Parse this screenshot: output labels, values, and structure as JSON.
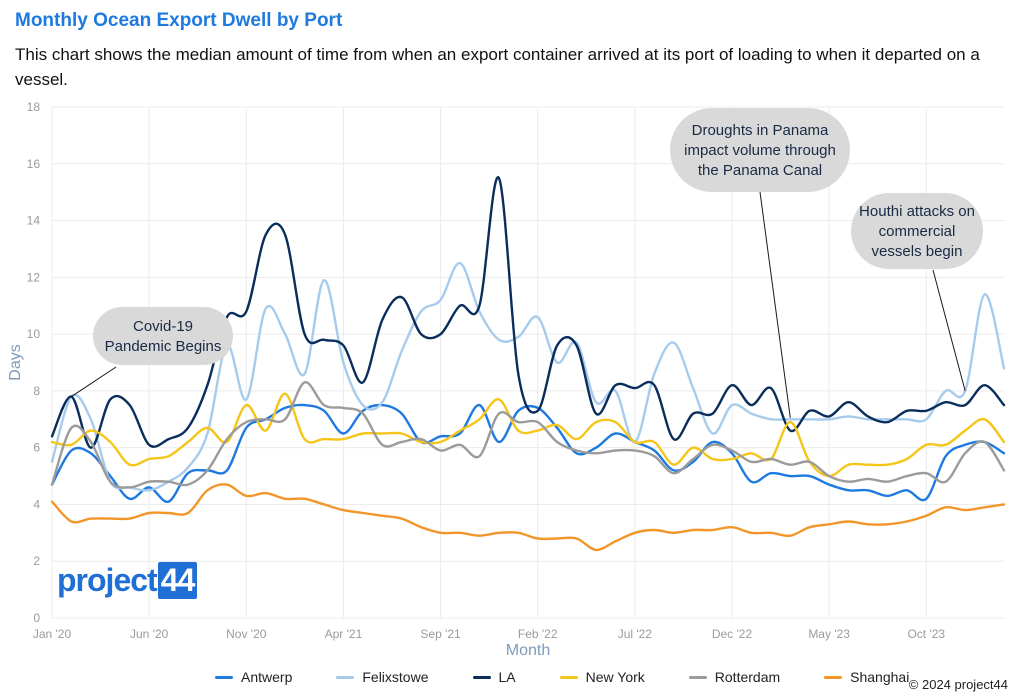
{
  "header": {
    "title": "Monthly Ocean Export Dwell by Port",
    "subtitle": "This chart shows the median amount of time from when an export container arrived at its port of loading to when it departed on a vessel."
  },
  "logo": {
    "text_a": "project",
    "text_b": "44"
  },
  "copyright": "© 2024 project44",
  "chart_data": {
    "type": "line",
    "title": "Monthly Ocean Export Dwell by Port",
    "xlabel": "Month",
    "ylabel": "Days",
    "ylim": [
      0,
      18
    ],
    "yticks": [
      0,
      2,
      4,
      6,
      8,
      10,
      12,
      14,
      16,
      18
    ],
    "x_tick_labels": [
      "Jan '20",
      "Jun '20",
      "Nov '20",
      "Apr '21",
      "Sep '21",
      "Feb '22",
      "Jul '22",
      "Dec '22",
      "May '23",
      "Oct '23"
    ],
    "x_tick_indices": [
      0,
      5,
      10,
      15,
      20,
      25,
      30,
      35,
      40,
      45
    ],
    "months": [
      "Jan '20",
      "Feb '20",
      "Mar '20",
      "Apr '20",
      "May '20",
      "Jun '20",
      "Jul '20",
      "Aug '20",
      "Sep '20",
      "Oct '20",
      "Nov '20",
      "Dec '20",
      "Jan '21",
      "Feb '21",
      "Mar '21",
      "Apr '21",
      "May '21",
      "Jun '21",
      "Jul '21",
      "Aug '21",
      "Sep '21",
      "Oct '21",
      "Nov '21",
      "Dec '21",
      "Jan '22",
      "Feb '22",
      "Mar '22",
      "Apr '22",
      "May '22",
      "Jun '22",
      "Jul '22",
      "Aug '22",
      "Sep '22",
      "Oct '22",
      "Nov '22",
      "Dec '22",
      "Jan '23",
      "Feb '23",
      "Mar '23",
      "Apr '23",
      "May '23",
      "Jun '23",
      "Jul '23",
      "Aug '23",
      "Sep '23",
      "Oct '23",
      "Nov '23",
      "Dec '23",
      "Jan '24",
      "Feb '24"
    ],
    "grid": true,
    "legend_position": "bottom",
    "series": [
      {
        "name": "Antwerp",
        "color": "#1f7ae0",
        "values": [
          4.7,
          5.9,
          5.8,
          5.0,
          4.2,
          4.6,
          4.1,
          5.1,
          5.2,
          5.2,
          6.7,
          7.0,
          7.4,
          7.5,
          7.3,
          6.5,
          7.3,
          7.5,
          7.2,
          6.2,
          6.4,
          6.5,
          7.5,
          6.2,
          7.3,
          7.4,
          6.7,
          5.8,
          6.0,
          6.5,
          6.2,
          5.9,
          5.2,
          5.5,
          6.2,
          5.8,
          4.8,
          5.1,
          5.0,
          5.0,
          4.7,
          4.5,
          4.5,
          4.3,
          4.5,
          4.2,
          5.7,
          6.1,
          6.2,
          5.8
        ]
      },
      {
        "name": "Felixstowe",
        "color": "#a7cbed",
        "values": [
          5.5,
          7.8,
          7.0,
          4.8,
          4.6,
          4.5,
          4.8,
          5.3,
          6.5,
          9.6,
          7.7,
          10.9,
          10.0,
          8.6,
          11.9,
          9.0,
          7.5,
          7.6,
          9.4,
          10.8,
          11.2,
          12.5,
          10.8,
          9.8,
          9.9,
          10.6,
          9.0,
          9.7,
          7.6,
          8.0,
          6.2,
          8.6,
          9.7,
          8.1,
          6.5,
          7.5,
          7.2,
          7.0,
          7.0,
          7.0,
          7.0,
          7.1,
          7.0,
          7.0,
          7.0,
          7.0,
          8.0,
          8.0,
          11.4,
          8.8
        ]
      },
      {
        "name": "LA",
        "color": "#0a2d5c",
        "values": [
          6.4,
          7.8,
          6.0,
          7.7,
          7.5,
          6.1,
          6.3,
          6.7,
          8.2,
          10.6,
          10.8,
          13.5,
          13.5,
          10.0,
          9.8,
          9.6,
          8.3,
          10.5,
          11.3,
          10.0,
          10.0,
          11.0,
          11.0,
          15.5,
          8.6,
          7.3,
          9.6,
          9.6,
          7.2,
          8.2,
          8.1,
          8.2,
          6.3,
          7.2,
          7.2,
          8.2,
          7.5,
          8.1,
          6.6,
          7.3,
          7.1,
          7.6,
          7.1,
          6.9,
          7.3,
          7.3,
          7.6,
          7.5,
          8.2,
          7.5
        ]
      },
      {
        "name": "New York",
        "color": "#f5c518",
        "values": [
          6.2,
          6.1,
          6.6,
          6.2,
          5.4,
          5.6,
          5.7,
          6.2,
          6.7,
          6.2,
          7.5,
          6.6,
          7.9,
          6.3,
          6.3,
          6.3,
          6.5,
          6.5,
          6.5,
          6.2,
          6.2,
          6.6,
          7.0,
          7.7,
          6.6,
          6.6,
          6.8,
          6.3,
          6.9,
          6.9,
          6.2,
          6.2,
          5.4,
          6.0,
          5.6,
          5.6,
          5.8,
          5.6,
          6.9,
          5.5,
          5.0,
          5.4,
          5.4,
          5.4,
          5.6,
          6.1,
          6.1,
          6.6,
          7.0,
          6.2
        ]
      },
      {
        "name": "Rotterdam",
        "color": "#9b9b9b",
        "values": [
          4.7,
          6.7,
          6.2,
          4.8,
          4.6,
          4.8,
          4.8,
          4.7,
          5.2,
          6.3,
          6.9,
          7.0,
          7.0,
          8.3,
          7.5,
          7.4,
          7.2,
          6.1,
          6.2,
          6.3,
          5.9,
          6.1,
          5.7,
          7.2,
          6.9,
          6.9,
          6.2,
          5.9,
          5.8,
          5.9,
          5.9,
          5.7,
          5.1,
          5.6,
          6.1,
          5.9,
          5.5,
          5.6,
          5.4,
          5.5,
          5.0,
          4.8,
          4.9,
          4.8,
          5.0,
          5.1,
          4.8,
          5.8,
          6.2,
          5.2
        ]
      },
      {
        "name": "Shanghai",
        "color": "#f2962a",
        "values": [
          4.1,
          3.4,
          3.5,
          3.5,
          3.5,
          3.7,
          3.7,
          3.7,
          4.5,
          4.7,
          4.3,
          4.4,
          4.2,
          4.2,
          4.0,
          3.8,
          3.7,
          3.6,
          3.5,
          3.2,
          3.0,
          3.0,
          2.9,
          3.0,
          3.0,
          2.8,
          2.8,
          2.8,
          2.4,
          2.7,
          3.0,
          3.1,
          3.0,
          3.1,
          3.1,
          3.2,
          3.0,
          3.0,
          2.9,
          3.2,
          3.3,
          3.4,
          3.3,
          3.3,
          3.4,
          3.6,
          3.9,
          3.8,
          3.9,
          4.0
        ]
      }
    ],
    "annotations": [
      {
        "text": "Covid-19\nPandemic Begins",
        "target_index": 1,
        "target_value": 7.8
      },
      {
        "text": "Droughts in Panama\nimpact volume through\nthe Panama Canal",
        "target_index": 38,
        "target_value": 7.05
      },
      {
        "text": "Houthi attacks on\ncommercial\nvessels begin",
        "target_index": 47,
        "target_value": 8.0
      }
    ]
  }
}
